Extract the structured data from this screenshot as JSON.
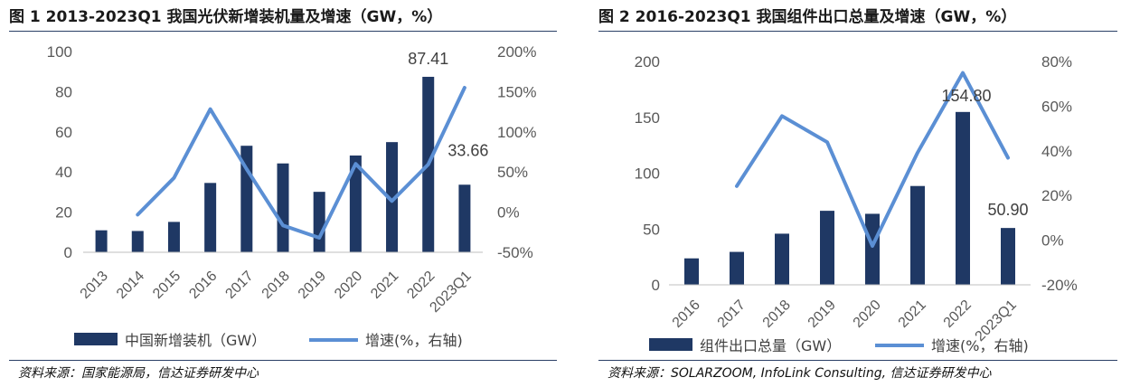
{
  "chart_data": [
    {
      "type": "bar",
      "title": "图 1 2013-2023Q1 我国光伏新增装机量及增速（GW，%）",
      "categories": [
        "2013",
        "2014",
        "2015",
        "2016",
        "2017",
        "2018",
        "2019",
        "2020",
        "2021",
        "2022",
        "2023Q1"
      ],
      "series": [
        {
          "name": "中国新增装机（GW）",
          "type": "bar",
          "axis": "left",
          "values": [
            10.95,
            10.6,
            15.13,
            34.54,
            53.06,
            44.26,
            30.11,
            48.2,
            54.88,
            87.41,
            33.66
          ]
        },
        {
          "name": "增速(%，右轴)",
          "type": "line",
          "axis": "right",
          "values": [
            null,
            -3.2,
            42.7,
            128.3,
            53.6,
            -16.6,
            -32.0,
            60.1,
            13.9,
            59.3,
            155.0
          ]
        }
      ],
      "data_labels": [
        {
          "category": "2022",
          "text": "87.41"
        },
        {
          "category": "2023Q1",
          "text": "33.66"
        }
      ],
      "ylim_left": [
        0,
        100
      ],
      "yticks_left": [
        "0",
        "20",
        "40",
        "60",
        "80",
        "100"
      ],
      "ylim_right": [
        -50,
        200
      ],
      "yticks_right": [
        "-50%",
        "0%",
        "50%",
        "100%",
        "150%",
        "200%"
      ],
      "grid": false,
      "legend": "bottom",
      "source": "资料来源：国家能源局，信达证券研发中心",
      "colors": {
        "bar": "#1f3864",
        "line": "#5b8fd4"
      }
    },
    {
      "type": "bar",
      "title": "图 2 2016-2023Q1 我国组件出口总量及增速（GW，%）",
      "categories": [
        "2016",
        "2017",
        "2018",
        "2019",
        "2020",
        "2021",
        "2022",
        "2023Q1"
      ],
      "series": [
        {
          "name": "组件出口总量（GW）",
          "type": "bar",
          "axis": "left",
          "values": [
            23.7,
            29.5,
            45.8,
            66.3,
            63.6,
            88.5,
            154.8,
            50.9
          ]
        },
        {
          "name": "增速(%，右轴)",
          "type": "line",
          "axis": "right",
          "values": [
            null,
            24.2,
            55.6,
            43.9,
            -2.6,
            39.2,
            74.9,
            36.9
          ]
        }
      ],
      "data_labels": [
        {
          "category": "2022",
          "text": "154.80"
        },
        {
          "category": "2023Q1",
          "text": "50.90"
        }
      ],
      "ylim_left": [
        0,
        200
      ],
      "yticks_left": [
        "0",
        "50",
        "100",
        "150",
        "200"
      ],
      "ylim_right": [
        -20,
        80
      ],
      "yticks_right": [
        "-20%",
        "0%",
        "20%",
        "40%",
        "60%",
        "80%"
      ],
      "grid": false,
      "legend": "bottom",
      "source": "资料来源：SOLARZOOM, InfoLink Consulting, 信达证券研发中心",
      "colors": {
        "bar": "#1f3864",
        "line": "#5b8fd4"
      }
    }
  ]
}
